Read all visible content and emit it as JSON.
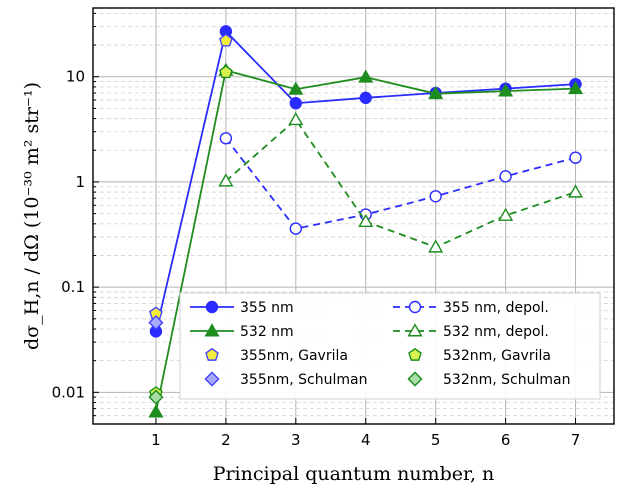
{
  "chart_data": {
    "type": "line",
    "xlabel": "Principal quantum number, n",
    "ylabel": "dσ_H,n / dΩ  (10⁻³⁰ m² str⁻¹)",
    "yscale": "log",
    "xlim": [
      0.1,
      7.55
    ],
    "ylim": [
      0.005,
      45
    ],
    "x_ticks": [
      1,
      2,
      3,
      4,
      5,
      6,
      7
    ],
    "y_ticks": [
      {
        "value": 0.01,
        "label": "0.01"
      },
      {
        "value": 0.1,
        "label": "0.1"
      },
      {
        "value": 1,
        "label": "1"
      },
      {
        "value": 10,
        "label": "10"
      }
    ],
    "grid": true,
    "legend_position": "bottom-right",
    "series": [
      {
        "name": "355 nm",
        "color": "#2b2bff",
        "marker": "circle",
        "filled": true,
        "dashed": false,
        "x": [
          1,
          2,
          3,
          4,
          5,
          6,
          7
        ],
        "y": [
          0.038,
          27,
          5.6,
          6.3,
          7.0,
          7.7,
          8.5
        ]
      },
      {
        "name": "532 nm",
        "color": "#1e8c1e",
        "marker": "triangle",
        "filled": true,
        "dashed": false,
        "x": [
          1,
          2,
          3,
          4,
          5,
          6,
          7
        ],
        "y": [
          0.0065,
          11.5,
          7.6,
          9.9,
          6.9,
          7.3,
          7.7
        ]
      },
      {
        "name": "355 nm, depol.",
        "color": "#2b2bff",
        "marker": "circle",
        "filled": false,
        "dashed": true,
        "x": [
          2,
          3,
          4,
          5,
          6,
          7
        ],
        "y": [
          2.6,
          0.36,
          0.49,
          0.73,
          1.13,
          1.7
        ]
      },
      {
        "name": "532 nm, depol.",
        "color": "#1e8c1e",
        "marker": "triangle",
        "filled": false,
        "dashed": true,
        "x": [
          2,
          3,
          4,
          5,
          6,
          7
        ],
        "y": [
          1.02,
          3.9,
          0.42,
          0.24,
          0.48,
          0.8
        ]
      },
      {
        "name": "355nm, Gavrila",
        "color": "#f2ec3a",
        "marker": "pentagon",
        "filled": true,
        "dashed": false,
        "stroke": "#4444ff",
        "x": [
          1,
          2
        ],
        "y": [
          0.056,
          22
        ]
      },
      {
        "name": "532nm, Gavrila",
        "color": "#d7f250",
        "marker": "pentagon",
        "filled": true,
        "dashed": false,
        "stroke": "#1e8c1e",
        "x": [
          1,
          2
        ],
        "y": [
          0.0098,
          11
        ]
      },
      {
        "name": "355nm, Schulman",
        "color": "#a8a8ff",
        "marker": "diamond",
        "filled": true,
        "dashed": false,
        "stroke": "#4444ff",
        "x": [
          1
        ],
        "y": [
          0.046
        ]
      },
      {
        "name": "532nm, Schulman",
        "color": "#a8dca8",
        "marker": "diamond",
        "filled": true,
        "dashed": false,
        "stroke": "#1e8c1e",
        "x": [
          1
        ],
        "y": [
          0.009
        ]
      }
    ]
  }
}
